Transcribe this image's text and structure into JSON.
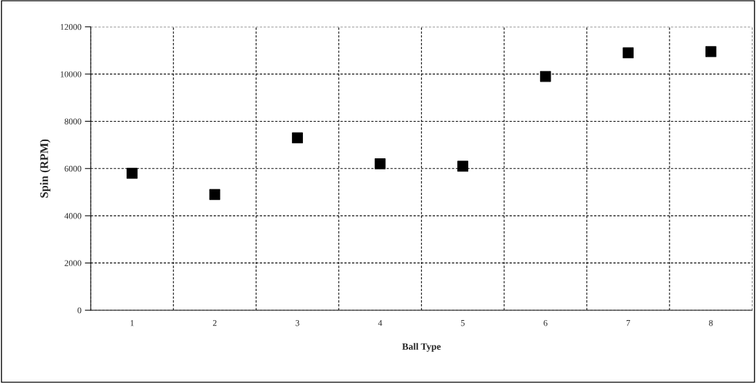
{
  "chart_data": {
    "type": "scatter",
    "xlabel": "Ball Type",
    "ylabel": "Spin (RPM)",
    "categories": [
      "1",
      "2",
      "3",
      "4",
      "5",
      "6",
      "7",
      "8"
    ],
    "series": [
      {
        "color": "#000000",
        "values": [
          5800,
          4900,
          7300,
          6200,
          6100,
          9900,
          10900,
          10950
        ]
      }
    ],
    "ylim": [
      0,
      12000
    ],
    "yticks": [
      0,
      2000,
      4000,
      6000,
      8000,
      10000,
      12000
    ],
    "grid": true,
    "marker": "square",
    "legend": false
  }
}
